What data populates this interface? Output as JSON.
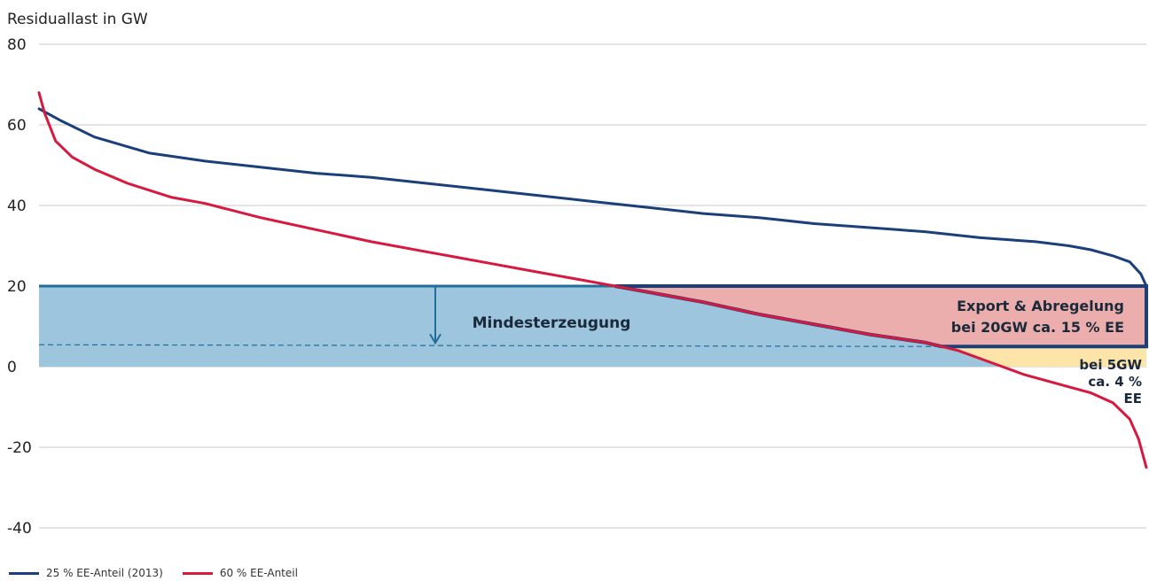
{
  "chart_data": {
    "type": "line",
    "title": "",
    "ylabel": "Residuallast in GW",
    "xlabel": "",
    "ylim": [
      -40,
      80
    ],
    "yticks": [
      80,
      60,
      40,
      20,
      0,
      -20,
      -40
    ],
    "grid": true,
    "legend_placement": "bottom-left",
    "x_unit": "hours sorted by residual load (percent of year)",
    "series": [
      {
        "name": "25 % EE-Anteil (2013)",
        "color": "#1b3f7a",
        "x": [
          0,
          2,
          5,
          10,
          15,
          20,
          25,
          30,
          35,
          40,
          45,
          50,
          55,
          60,
          65,
          70,
          75,
          80,
          85,
          90,
          93,
          95,
          97,
          98.5,
          99.5,
          100
        ],
        "values": [
          64,
          61,
          57,
          53,
          51,
          49.5,
          48,
          47,
          45.5,
          44,
          42.5,
          41,
          39.5,
          38,
          37,
          35.5,
          34.5,
          33.5,
          32,
          31,
          30,
          29,
          27.5,
          26,
          23,
          20
        ]
      },
      {
        "name": "60 % EE-Anteil",
        "color": "#d7193f",
        "x": [
          0,
          0.5,
          1.5,
          3,
          5,
          8,
          12,
          15,
          20,
          25,
          30,
          35,
          40,
          45,
          50,
          55,
          60,
          65,
          70,
          75,
          80,
          83,
          85,
          87,
          89,
          91,
          93,
          95,
          97,
          98.5,
          99.3,
          100
        ],
        "values": [
          68,
          63,
          56,
          52,
          49,
          45.5,
          42,
          40.5,
          37,
          34,
          31,
          28.5,
          26,
          23.5,
          21,
          18.5,
          16,
          13,
          10.5,
          8,
          6,
          4,
          2,
          0,
          -2,
          -3.5,
          -5,
          -6.5,
          -9,
          -13,
          -18,
          -25
        ]
      }
    ],
    "annotations": {
      "mindest": {
        "label": "Mindesterzeugung",
        "from_gw": 20,
        "to_gw": 5
      },
      "export": {
        "line1": "Export  & Abregelung",
        "line2": "bei 20GW ca. 15 % EE",
        "upper_gw": 20,
        "lower_gw": 5
      },
      "low": {
        "line1": "bei 5GW",
        "line2": "ca. 4 %",
        "line3": "EE",
        "upper_gw": 5,
        "lower_gw": 0
      }
    },
    "colors": {
      "mindest_fill": "#9ec5de",
      "export_fill": "#ebaeac",
      "low_fill": "#fde4a9",
      "band_border": "#1b3f7a",
      "min_line": "#1f6f9a",
      "grid": "#c8c8c8"
    }
  }
}
